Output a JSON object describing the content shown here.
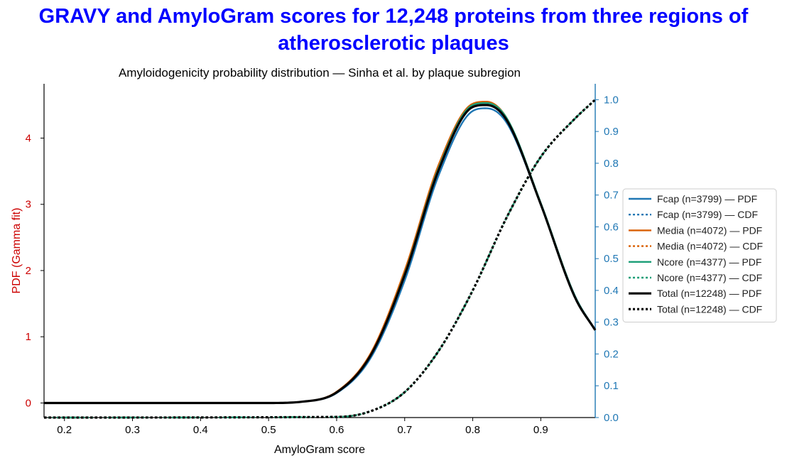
{
  "page_title": "GRAVY and AmyloGram scores for 12,248 proteins from three regions of atherosclerotic plaques",
  "chart_data": {
    "type": "line",
    "title": "Amyloidogenicity probability distribution — Sinha et al. by plaque subregion",
    "xlabel": "AmyloGram score",
    "ylabel_left": "PDF (Gamma fit)",
    "ylabel_right": "",
    "xlim": [
      0.17,
      0.98
    ],
    "ylim_left": [
      -0.22,
      4.82
    ],
    "ylim_right": [
      0.0,
      1.05
    ],
    "x_ticks": [
      "0.2",
      "0.3",
      "0.4",
      "0.5",
      "0.6",
      "0.7",
      "0.8",
      "0.9"
    ],
    "y_left_ticks": [
      "0",
      "1",
      "2",
      "3",
      "4"
    ],
    "y_right_ticks": [
      "0.0",
      "0.1",
      "0.2",
      "0.3",
      "0.4",
      "0.5",
      "0.6",
      "0.7",
      "0.8",
      "0.9",
      "1.0"
    ],
    "grid": false,
    "legend_position": "right",
    "colors": {
      "left_axis": "#cc0000",
      "right_axis": "#1f77b4",
      "title": "#0000ff"
    },
    "series": [
      {
        "name": "Fcap (n=3799) — PDF",
        "axis": "left",
        "style": "solid",
        "color": "#1f77b4",
        "x": [
          0.17,
          0.5,
          0.55,
          0.6,
          0.65,
          0.7,
          0.75,
          0.8,
          0.82,
          0.85,
          0.9,
          0.95,
          0.98
        ],
        "y": [
          0.0,
          0.0,
          0.02,
          0.15,
          0.68,
          1.85,
          3.44,
          4.41,
          4.45,
          4.23,
          3.0,
          1.62,
          1.1
        ]
      },
      {
        "name": "Fcap (n=3799) — CDF",
        "axis": "right",
        "style": "dotted",
        "color": "#1f77b4",
        "x": [
          0.17,
          0.6,
          0.65,
          0.7,
          0.75,
          0.8,
          0.85,
          0.9,
          0.95,
          0.98
        ],
        "y": [
          0.0,
          0.002,
          0.02,
          0.08,
          0.21,
          0.4,
          0.63,
          0.82,
          0.94,
          1.0
        ]
      },
      {
        "name": "Media (n=4072) — PDF",
        "axis": "left",
        "style": "solid",
        "color": "#d95f02",
        "x": [
          0.17,
          0.5,
          0.55,
          0.6,
          0.65,
          0.7,
          0.75,
          0.8,
          0.82,
          0.85,
          0.9,
          0.95,
          0.98
        ],
        "y": [
          0.0,
          0.0,
          0.02,
          0.17,
          0.75,
          2.0,
          3.6,
          4.52,
          4.55,
          4.3,
          3.0,
          1.6,
          1.1
        ]
      },
      {
        "name": "Media (n=4072) — CDF",
        "axis": "right",
        "style": "dotted",
        "color": "#d95f02",
        "x": [
          0.17,
          0.6,
          0.65,
          0.7,
          0.75,
          0.8,
          0.85,
          0.9,
          0.95,
          0.98
        ],
        "y": [
          0.0,
          0.002,
          0.02,
          0.08,
          0.21,
          0.4,
          0.63,
          0.82,
          0.94,
          1.0
        ]
      },
      {
        "name": "Ncore (n=4377) — PDF",
        "axis": "left",
        "style": "solid",
        "color": "#1b9e77",
        "x": [
          0.17,
          0.5,
          0.55,
          0.6,
          0.65,
          0.7,
          0.75,
          0.8,
          0.82,
          0.85,
          0.9,
          0.95,
          0.98
        ],
        "y": [
          0.0,
          0.0,
          0.02,
          0.16,
          0.72,
          1.95,
          3.55,
          4.5,
          4.53,
          4.3,
          3.02,
          1.62,
          1.1
        ]
      },
      {
        "name": "Ncore (n=4377) — CDF",
        "axis": "right",
        "style": "dotted",
        "color": "#1b9e77",
        "x": [
          0.17,
          0.6,
          0.65,
          0.7,
          0.75,
          0.8,
          0.85,
          0.9,
          0.95,
          0.98
        ],
        "y": [
          0.0,
          0.002,
          0.02,
          0.08,
          0.21,
          0.4,
          0.63,
          0.82,
          0.94,
          1.0
        ]
      },
      {
        "name": "Total (n=12248) — PDF",
        "axis": "left",
        "style": "solid",
        "color": "#000000",
        "x": [
          0.17,
          0.5,
          0.55,
          0.6,
          0.65,
          0.7,
          0.75,
          0.8,
          0.82,
          0.85,
          0.9,
          0.95,
          0.98
        ],
        "y": [
          0.0,
          0.0,
          0.02,
          0.16,
          0.72,
          1.93,
          3.52,
          4.47,
          4.5,
          4.27,
          3.0,
          1.6,
          1.1
        ]
      },
      {
        "name": "Total (n=12248) — CDF",
        "axis": "right",
        "style": "dotted",
        "color": "#000000",
        "x": [
          0.17,
          0.6,
          0.65,
          0.7,
          0.75,
          0.8,
          0.85,
          0.9,
          0.95,
          0.98
        ],
        "y": [
          0.0,
          0.002,
          0.02,
          0.08,
          0.21,
          0.4,
          0.63,
          0.82,
          0.94,
          1.0
        ]
      }
    ]
  }
}
